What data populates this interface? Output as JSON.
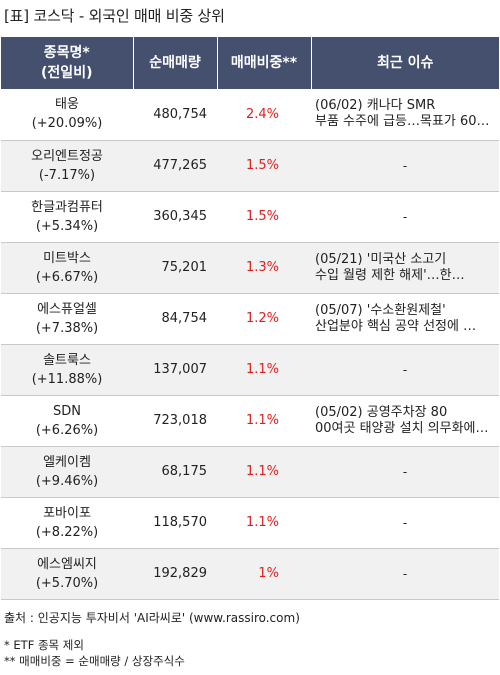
{
  "title": "[표] 코스닥 - 외국인 매매 비중 상위",
  "headers": {
    "name_line1": "종목명*",
    "name_line2": "(전일비)",
    "volume": "순매매량",
    "ratio": "매매비중**",
    "issue": "최근 이슈"
  },
  "rows": [
    {
      "name": "태웅",
      "change": "(+20.09%)",
      "volume": "480,754",
      "ratio": "2.4%",
      "issue1": "(06/02) 캐나다 SMR",
      "issue2": "부품 수주에 급등…목표가 60…"
    },
    {
      "name": "오리엔트정공",
      "change": "(-7.17%)",
      "volume": "477,265",
      "ratio": "1.5%",
      "issue1": "-",
      "issue2": ""
    },
    {
      "name": "한글과컴퓨터",
      "change": "(+5.34%)",
      "volume": "360,345",
      "ratio": "1.5%",
      "issue1": "-",
      "issue2": ""
    },
    {
      "name": "미트박스",
      "change": "(+6.67%)",
      "volume": "75,201",
      "ratio": "1.3%",
      "issue1": "(05/21) '미국산 소고기",
      "issue2": "수입 월령 제한 해제'…한…"
    },
    {
      "name": "에스퓨얼셀",
      "change": "(+7.38%)",
      "volume": "84,754",
      "ratio": "1.2%",
      "issue1": "(05/07) '수소환원제철'",
      "issue2": "산업분야 핵심 공약 선정에 …"
    },
    {
      "name": "솔트룩스",
      "change": "(+11.88%)",
      "volume": "137,007",
      "ratio": "1.1%",
      "issue1": "-",
      "issue2": ""
    },
    {
      "name": "SDN",
      "change": "(+6.26%)",
      "volume": "723,018",
      "ratio": "1.1%",
      "issue1": "(05/02) 공영주차장 80",
      "issue2": "00여곳 태양광 설치 의무화에…"
    },
    {
      "name": "엘케이켐",
      "change": "(+9.46%)",
      "volume": "68,175",
      "ratio": "1.1%",
      "issue1": "-",
      "issue2": ""
    },
    {
      "name": "포바이포",
      "change": "(+8.22%)",
      "volume": "118,570",
      "ratio": "1.1%",
      "issue1": "-",
      "issue2": ""
    },
    {
      "name": "에스엠씨지",
      "change": "(+5.70%)",
      "volume": "192,829",
      "ratio": "1%",
      "issue1": "-",
      "issue2": ""
    }
  ],
  "source": "출처 : 인공지능 투자비서 'AI라씨로' (www.rassiro.com)",
  "note1": "* ETF 종목 제외",
  "note2": "** 매매비중 = 순매매량 / 상장주식수",
  "colors": {
    "header_bg": "#44506e",
    "ratio_text": "#e02020",
    "row_alt": "#f1f1f1"
  }
}
